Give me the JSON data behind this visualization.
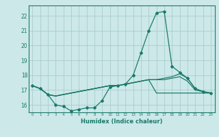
{
  "xlabel": "Humidex (Indice chaleur)",
  "x": [
    0,
    1,
    2,
    3,
    4,
    5,
    6,
    7,
    8,
    9,
    10,
    11,
    12,
    13,
    14,
    15,
    16,
    17,
    18,
    19,
    20,
    21,
    22,
    23
  ],
  "line1": [
    17.3,
    17.1,
    16.7,
    16.0,
    15.9,
    15.6,
    15.7,
    15.8,
    15.8,
    16.3,
    17.2,
    17.3,
    17.4,
    18.0,
    19.5,
    21.0,
    22.2,
    22.3,
    18.6,
    18.2,
    17.8,
    17.1,
    16.9,
    16.8
  ],
  "line2": [
    17.3,
    17.1,
    16.7,
    16.6,
    16.7,
    16.8,
    16.9,
    17.0,
    17.1,
    17.2,
    17.3,
    17.3,
    17.4,
    17.5,
    17.6,
    17.7,
    17.7,
    17.8,
    17.9,
    18.1,
    17.8,
    17.1,
    16.9,
    16.8
  ],
  "line3": [
    17.3,
    17.1,
    16.7,
    16.6,
    16.7,
    16.8,
    16.9,
    17.0,
    17.1,
    17.2,
    17.3,
    17.3,
    17.4,
    17.5,
    17.6,
    17.7,
    17.7,
    17.7,
    17.8,
    17.9,
    17.6,
    17.0,
    16.9,
    16.8
  ],
  "line4": [
    17.3,
    17.1,
    16.7,
    16.6,
    16.7,
    16.8,
    16.9,
    17.0,
    17.1,
    17.2,
    17.3,
    17.3,
    17.4,
    17.5,
    17.6,
    17.7,
    16.8,
    16.8,
    16.8,
    16.8,
    16.8,
    16.8,
    16.8,
    16.8
  ],
  "line_color": "#1a7a6a",
  "bg_color": "#cce8e8",
  "grid_color": "#aacccc",
  "ylim": [
    15.5,
    22.7
  ],
  "xlim": [
    -0.5,
    23.5
  ],
  "yticks": [
    16,
    17,
    18,
    19,
    20,
    21,
    22
  ],
  "xticks": [
    0,
    1,
    2,
    3,
    4,
    5,
    6,
    7,
    8,
    9,
    10,
    11,
    12,
    13,
    14,
    15,
    16,
    17,
    18,
    19,
    20,
    21,
    22,
    23
  ]
}
